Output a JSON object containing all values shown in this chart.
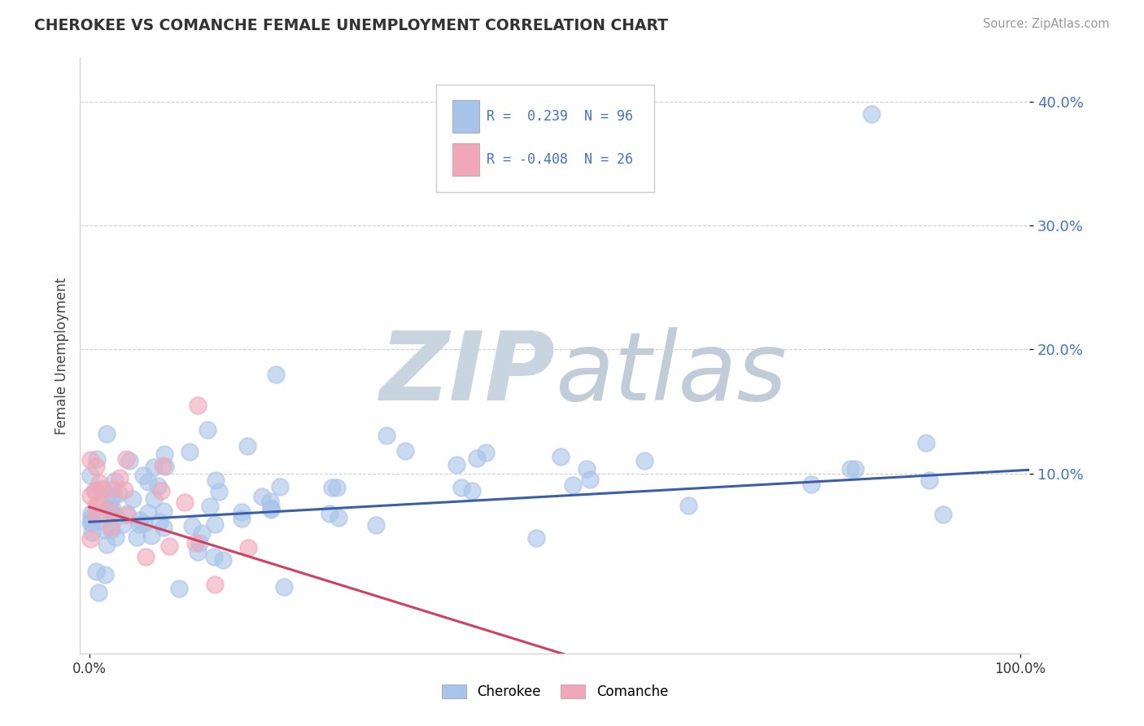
{
  "title": "CHEROKEE VS COMANCHE FEMALE UNEMPLOYMENT CORRELATION CHART",
  "source": "Source: ZipAtlas.com",
  "ylabel": "Female Unemployment",
  "xlabel": "",
  "xlim": [
    -0.01,
    1.01
  ],
  "ylim": [
    -0.045,
    0.435
  ],
  "ytick_vals": [
    0.1,
    0.2,
    0.3,
    0.4
  ],
  "ytick_labels": [
    "10.0%",
    "20.0%",
    "30.0%",
    "40.0%"
  ],
  "xtick_vals": [
    0.0,
    1.0
  ],
  "xtick_labels": [
    "0.0%",
    "100.0%"
  ],
  "cherokee_R": 0.239,
  "cherokee_N": 96,
  "comanche_R": -0.408,
  "comanche_N": 26,
  "cherokee_color": "#a8c4e8",
  "comanche_color": "#f0a8b8",
  "cherokee_line_color": "#3a5fa8",
  "comanche_line_color": "#d04060",
  "background_color": "#ffffff",
  "grid_color": "#c8c8d0",
  "watermark_zip_color": "#c8d4e0",
  "watermark_atlas_color": "#c0ccd8",
  "legend_label_cherokee": "Cherokee",
  "legend_label_comanche": "Comanche",
  "title_color": "#333333",
  "source_color": "#999999",
  "tick_color": "#4472c4",
  "cherokee_trend_x0": 0.0,
  "cherokee_trend_x1": 1.01,
  "cherokee_trend_y0": 0.061,
  "cherokee_trend_y1": 0.103,
  "comanche_trend_x0": 0.0,
  "comanche_trend_x1": 0.52,
  "comanche_trend_y0": 0.073,
  "comanche_trend_y1": -0.048
}
